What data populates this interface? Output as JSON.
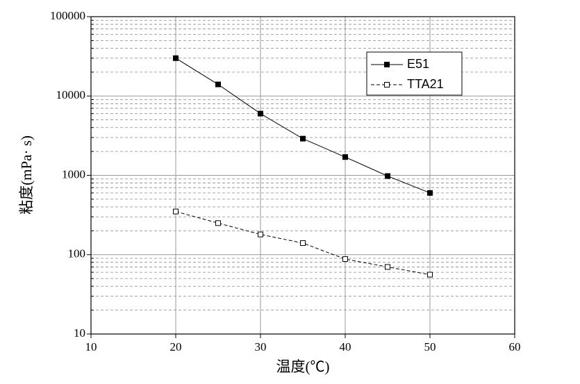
{
  "chart_data": {
    "type": "line",
    "x_label": "温度(℃)",
    "y_label": "粘度(mPa· s)",
    "x": [
      20,
      25,
      30,
      35,
      40,
      45,
      50
    ],
    "series": [
      {
        "name": "E51",
        "color": "#000000",
        "dash": "solid",
        "marker": "filled-square",
        "values": [
          30000,
          14000,
          6000,
          2900,
          1700,
          980,
          600
        ]
      },
      {
        "name": "TTA21",
        "color": "#000000",
        "dash": "dashed",
        "marker": "open-square",
        "values": [
          350,
          250,
          180,
          140,
          88,
          70,
          56
        ]
      }
    ],
    "xlim": [
      10,
      60
    ],
    "xticks": [
      10,
      20,
      30,
      40,
      50,
      60
    ],
    "ylim": [
      10,
      100000
    ],
    "yticks": [
      10,
      100,
      1000,
      10000,
      100000
    ],
    "log_y": true,
    "grid": true,
    "minor_grid": true,
    "legend": "upper right"
  }
}
